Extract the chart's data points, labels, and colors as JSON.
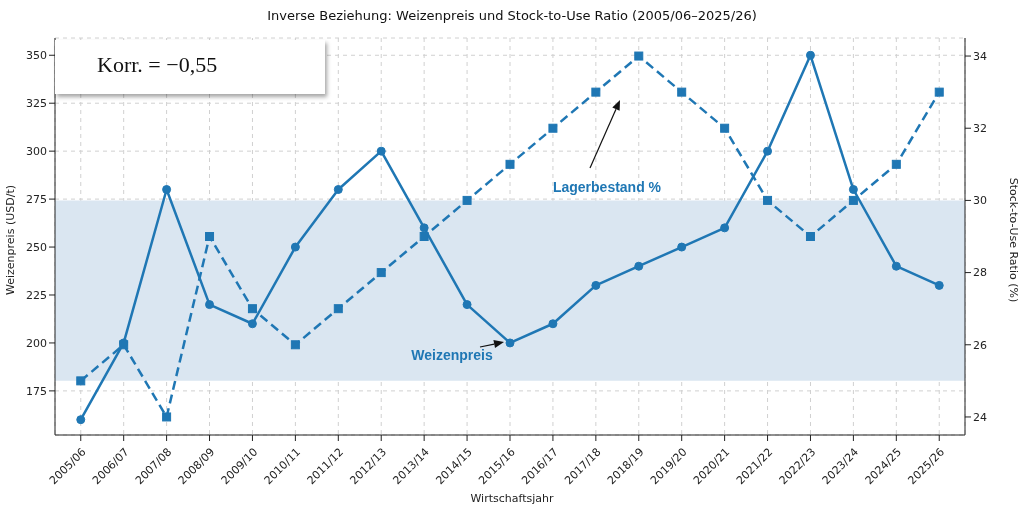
{
  "chart_data": {
    "type": "line",
    "title": "Inverse Beziehung: Weizenpreis und Stock-to-Use Ratio (2005/06–2025/26)",
    "xlabel": "Wirtschaftsjahr",
    "ylabel": "Weizenpreis (USD/t)",
    "y2label": "Stock-to-Use Ratio (%)",
    "categories": [
      "2005/06",
      "2006/07",
      "2007/08",
      "2008/09",
      "2009/10",
      "2010/11",
      "2011/12",
      "2012/13",
      "2013/14",
      "2014/15",
      "2015/16",
      "2016/17",
      "2017/18",
      "2018/19",
      "2019/20",
      "2020/21",
      "2021/22",
      "2022/23",
      "2023/24",
      "2024/25",
      "2025/26"
    ],
    "series": [
      {
        "name": "Weizenpreis",
        "color": "#1f77b4",
        "marker": "circle",
        "line_style": "solid",
        "values": [
          160,
          200,
          280,
          220,
          210,
          250,
          280,
          300,
          260,
          220,
          200,
          210,
          230,
          240,
          250,
          260,
          300,
          350,
          280,
          240,
          230
        ]
      },
      {
        "name": "Lagerbestand %",
        "color": "#1f77b4",
        "marker": "square",
        "line_style": "dashed",
        "axis": "y2",
        "values": [
          25,
          26,
          24,
          29,
          27,
          26,
          27,
          28,
          29,
          30,
          31,
          32,
          33,
          34,
          33,
          32,
          30,
          29,
          30,
          31,
          33
        ]
      }
    ],
    "ylim": [
      152,
      359
    ],
    "yticks": [
      175,
      200,
      225,
      250,
      275,
      300,
      325,
      350
    ],
    "y2lim": [
      23.5,
      34.5
    ],
    "y2ticks": [
      24,
      26,
      28,
      30,
      32,
      34
    ],
    "bands": [
      {
        "axis": "y2",
        "from": 25,
        "to": 30,
        "color": "#dae6f1"
      }
    ],
    "annotations": [
      "Korr. = −0,55"
    ],
    "grid": true,
    "legend": false
  }
}
